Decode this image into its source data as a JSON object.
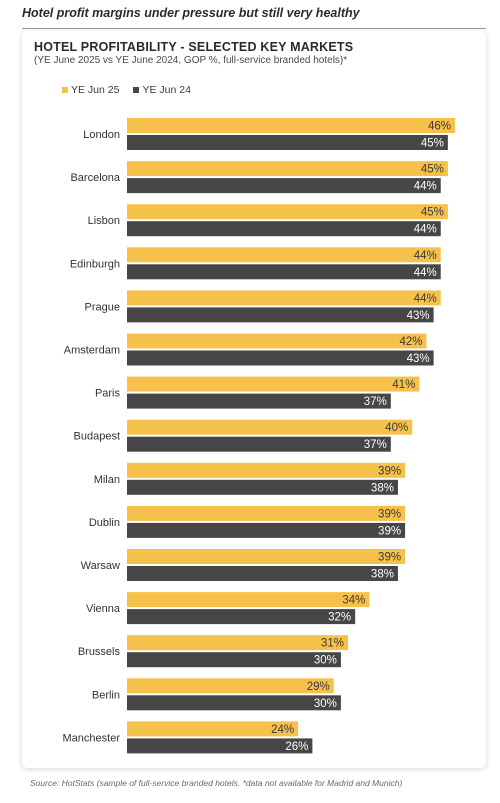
{
  "headline": "Hotel profit margins under pressure but still very healthy",
  "colors": {
    "series_2025": "#f6c14a",
    "series_2024": "#464646",
    "category_text": "#333333",
    "label_light": "#ffffff"
  },
  "chart_data": {
    "type": "bar",
    "orientation": "horizontal",
    "title": "HOTEL PROFITABILITY - SELECTED KEY MARKETS",
    "subtitle": "(YE June 2025 vs YE June 2024, GOP %, full-service branded hotels)*",
    "legend_position": "top-left",
    "grid": false,
    "xlim": [
      0,
      50
    ],
    "unit": "%",
    "categories": [
      "London",
      "Barcelona",
      "Lisbon",
      "Edinburgh",
      "Prague",
      "Amsterdam",
      "Paris",
      "Budapest",
      "Milan",
      "Dublin",
      "Warsaw",
      "Vienna",
      "Brussels",
      "Berlin",
      "Manchester"
    ],
    "series": [
      {
        "name": "YE Jun 25",
        "values": [
          46,
          45,
          45,
          44,
          44,
          42,
          41,
          40,
          39,
          39,
          39,
          34,
          31,
          29,
          24
        ]
      },
      {
        "name": "YE Jun 24",
        "values": [
          45,
          44,
          44,
          44,
          43,
          43,
          37,
          37,
          38,
          39,
          38,
          32,
          30,
          30,
          26
        ]
      }
    ]
  },
  "source": "Source: HotStats (sample of full-service branded hotels. *data not available for Madrid and Munich)"
}
